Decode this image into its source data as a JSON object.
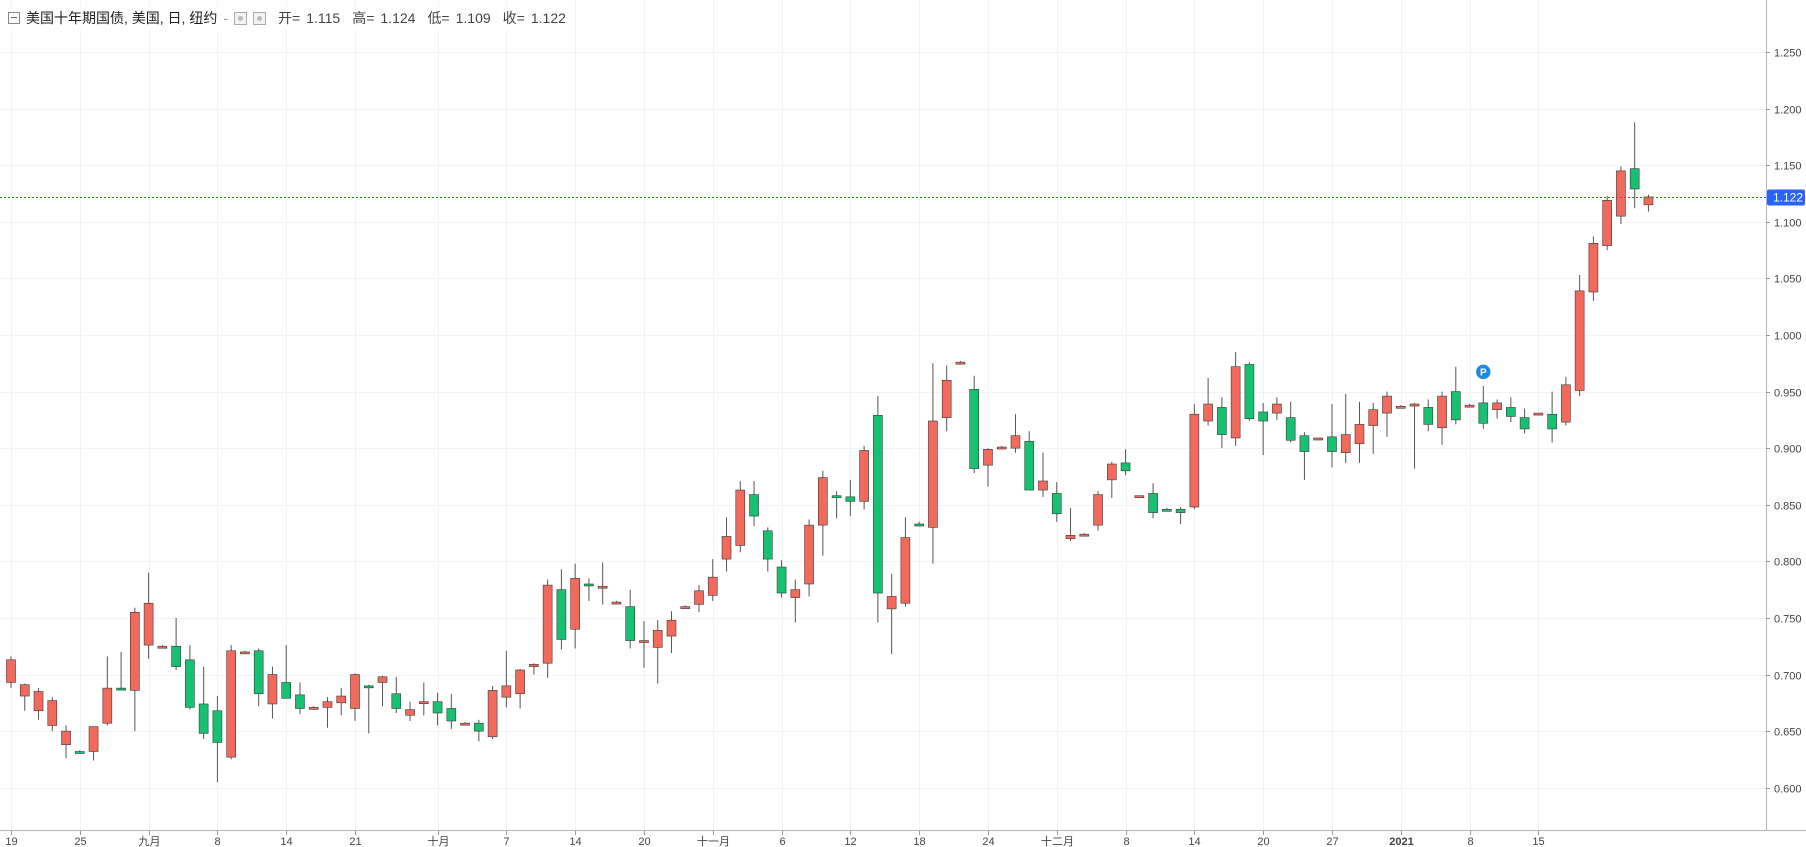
{
  "legend": {
    "symbol": "美国十年期国债, 美国, 日, 纽约",
    "dash": "-",
    "open_label": "开=",
    "open": "1.115",
    "high_label": "高=",
    "high": "1.124",
    "low_label": "低=",
    "low": "1.109",
    "close_label": "收=",
    "close": "1.122"
  },
  "colors": {
    "up": "#f16a5c",
    "down": "#18c171",
    "wick": "#555555",
    "price_tag": "#2962ff",
    "marker": "#1e88e5"
  },
  "chart_data": {
    "type": "candlestick",
    "y_ticks": [
      "0.600",
      "0.650",
      "0.700",
      "0.750",
      "0.800",
      "0.850",
      "0.900",
      "0.950",
      "1.000",
      "1.050",
      "1.100",
      "1.150",
      "1.200",
      "1.250"
    ],
    "ylim": [
      0.575,
      1.258
    ],
    "x_ticks": [
      {
        "i": 0,
        "label": "19"
      },
      {
        "i": 5,
        "label": "25"
      },
      {
        "i": 10,
        "label": "九月"
      },
      {
        "i": 15,
        "label": "8"
      },
      {
        "i": 20,
        "label": "14"
      },
      {
        "i": 25,
        "label": "21"
      },
      {
        "i": 31,
        "label": "十月"
      },
      {
        "i": 36,
        "label": "7"
      },
      {
        "i": 41,
        "label": "14"
      },
      {
        "i": 46,
        "label": "20"
      },
      {
        "i": 51,
        "label": "十一月"
      },
      {
        "i": 56,
        "label": "6"
      },
      {
        "i": 61,
        "label": "12"
      },
      {
        "i": 66,
        "label": "18"
      },
      {
        "i": 71,
        "label": "24"
      },
      {
        "i": 76,
        "label": "十二月"
      },
      {
        "i": 81,
        "label": "8"
      },
      {
        "i": 86,
        "label": "14"
      },
      {
        "i": 91,
        "label": "20"
      },
      {
        "i": 96,
        "label": "27"
      },
      {
        "i": 101,
        "label": "2021"
      },
      {
        "i": 106,
        "label": "8"
      },
      {
        "i": 111,
        "label": "15"
      }
    ],
    "current_price": 1.122,
    "current_price_label": "1.122",
    "marker_label": "P",
    "marker_index": 107,
    "candles": [
      [
        0.693,
        0.716,
        0.688,
        0.713
      ],
      [
        0.681,
        0.692,
        0.668,
        0.691
      ],
      [
        0.668,
        0.688,
        0.66,
        0.685
      ],
      [
        0.655,
        0.68,
        0.65,
        0.677
      ],
      [
        0.638,
        0.655,
        0.626,
        0.65
      ],
      [
        0.632,
        0.633,
        0.63,
        0.631
      ],
      [
        0.632,
        0.65,
        0.624,
        0.654
      ],
      [
        0.657,
        0.716,
        0.655,
        0.688
      ],
      [
        0.688,
        0.72,
        0.686,
        0.687
      ],
      [
        0.686,
        0.759,
        0.65,
        0.755
      ],
      [
        0.726,
        0.79,
        0.714,
        0.763
      ],
      [
        0.725,
        0.726,
        0.724,
        0.725
      ],
      [
        0.725,
        0.75,
        0.704,
        0.707
      ],
      [
        0.713,
        0.726,
        0.669,
        0.671
      ],
      [
        0.674,
        0.707,
        0.643,
        0.648
      ],
      [
        0.668,
        0.681,
        0.605,
        0.64
      ],
      [
        0.627,
        0.726,
        0.625,
        0.721
      ],
      [
        0.72,
        0.721,
        0.719,
        0.72
      ],
      [
        0.721,
        0.723,
        0.672,
        0.683
      ],
      [
        0.674,
        0.707,
        0.661,
        0.7
      ],
      [
        0.693,
        0.726,
        0.68,
        0.679
      ],
      [
        0.682,
        0.693,
        0.665,
        0.67
      ],
      [
        0.67,
        0.672,
        0.669,
        0.671
      ],
      [
        0.671,
        0.68,
        0.653,
        0.676
      ],
      [
        0.675,
        0.688,
        0.664,
        0.681
      ],
      [
        0.67,
        0.701,
        0.659,
        0.7
      ],
      [
        0.69,
        0.691,
        0.648,
        0.689
      ],
      [
        0.693,
        0.699,
        0.672,
        0.698
      ],
      [
        0.683,
        0.698,
        0.666,
        0.67
      ],
      [
        0.664,
        0.676,
        0.659,
        0.669
      ],
      [
        0.675,
        0.693,
        0.664,
        0.676
      ],
      [
        0.676,
        0.684,
        0.655,
        0.666
      ],
      [
        0.67,
        0.683,
        0.652,
        0.659
      ],
      [
        0.657,
        0.658,
        0.656,
        0.657
      ],
      [
        0.657,
        0.66,
        0.641,
        0.65
      ],
      [
        0.645,
        0.69,
        0.643,
        0.686
      ],
      [
        0.68,
        0.721,
        0.671,
        0.69
      ],
      [
        0.683,
        0.705,
        0.67,
        0.704
      ],
      [
        0.707,
        0.71,
        0.7,
        0.709
      ],
      [
        0.71,
        0.784,
        0.697,
        0.779
      ],
      [
        0.775,
        0.793,
        0.722,
        0.731
      ],
      [
        0.74,
        0.798,
        0.723,
        0.785
      ],
      [
        0.78,
        0.785,
        0.765,
        0.779
      ],
      [
        0.778,
        0.799,
        0.762,
        0.778
      ],
      [
        0.764,
        0.765,
        0.763,
        0.764
      ],
      [
        0.76,
        0.775,
        0.723,
        0.73
      ],
      [
        0.729,
        0.747,
        0.706,
        0.73
      ],
      [
        0.724,
        0.748,
        0.692,
        0.739
      ],
      [
        0.734,
        0.756,
        0.719,
        0.748
      ],
      [
        0.76,
        0.761,
        0.759,
        0.76
      ],
      [
        0.762,
        0.779,
        0.755,
        0.774
      ],
      [
        0.77,
        0.802,
        0.765,
        0.786
      ],
      [
        0.802,
        0.839,
        0.791,
        0.822
      ],
      [
        0.814,
        0.871,
        0.808,
        0.863
      ],
      [
        0.859,
        0.871,
        0.831,
        0.84
      ],
      [
        0.827,
        0.83,
        0.791,
        0.802
      ],
      [
        0.795,
        0.801,
        0.768,
        0.772
      ],
      [
        0.768,
        0.784,
        0.746,
        0.775
      ],
      [
        0.78,
        0.837,
        0.769,
        0.832
      ],
      [
        0.832,
        0.88,
        0.805,
        0.874
      ],
      [
        0.858,
        0.862,
        0.838,
        0.857
      ],
      [
        0.857,
        0.872,
        0.84,
        0.853
      ],
      [
        0.853,
        0.902,
        0.846,
        0.898
      ],
      [
        0.929,
        0.946,
        0.746,
        0.772
      ],
      [
        0.758,
        0.789,
        0.718,
        0.769
      ],
      [
        0.763,
        0.839,
        0.76,
        0.821
      ],
      [
        0.833,
        0.835,
        0.831,
        0.832
      ],
      [
        0.83,
        0.975,
        0.798,
        0.924
      ],
      [
        0.927,
        0.973,
        0.915,
        0.96
      ],
      [
        0.976,
        0.977,
        0.975,
        0.976
      ],
      [
        0.952,
        0.964,
        0.878,
        0.882
      ],
      [
        0.885,
        0.9,
        0.866,
        0.899
      ],
      [
        0.901,
        0.902,
        0.9,
        0.901
      ],
      [
        0.9,
        0.93,
        0.896,
        0.911
      ],
      [
        0.906,
        0.915,
        0.866,
        0.863
      ],
      [
        0.863,
        0.896,
        0.857,
        0.871
      ],
      [
        0.86,
        0.87,
        0.835,
        0.842
      ],
      [
        0.82,
        0.847,
        0.818,
        0.823
      ],
      [
        0.824,
        0.825,
        0.823,
        0.824
      ],
      [
        0.832,
        0.862,
        0.827,
        0.859
      ],
      [
        0.872,
        0.888,
        0.856,
        0.886
      ],
      [
        0.887,
        0.899,
        0.876,
        0.88
      ],
      [
        0.857,
        0.858,
        0.856,
        0.858
      ],
      [
        0.86,
        0.869,
        0.838,
        0.843
      ],
      [
        0.846,
        0.847,
        0.844,
        0.845
      ],
      [
        0.846,
        0.848,
        0.833,
        0.843
      ],
      [
        0.848,
        0.939,
        0.846,
        0.93
      ],
      [
        0.924,
        0.962,
        0.92,
        0.939
      ],
      [
        0.936,
        0.945,
        0.9,
        0.912
      ],
      [
        0.909,
        0.985,
        0.902,
        0.972
      ],
      [
        0.974,
        0.976,
        0.924,
        0.926
      ],
      [
        0.932,
        0.94,
        0.894,
        0.924
      ],
      [
        0.931,
        0.945,
        0.925,
        0.939
      ],
      [
        0.927,
        0.941,
        0.905,
        0.907
      ],
      [
        0.911,
        0.914,
        0.872,
        0.897
      ],
      [
        0.908,
        0.909,
        0.907,
        0.909
      ],
      [
        0.91,
        0.939,
        0.883,
        0.897
      ],
      [
        0.896,
        0.948,
        0.887,
        0.912
      ],
      [
        0.904,
        0.941,
        0.887,
        0.921
      ],
      [
        0.92,
        0.94,
        0.895,
        0.934
      ],
      [
        0.931,
        0.95,
        0.91,
        0.946
      ],
      [
        0.937,
        0.938,
        0.936,
        0.937
      ],
      [
        0.938,
        0.94,
        0.882,
        0.939
      ],
      [
        0.936,
        0.943,
        0.915,
        0.921
      ],
      [
        0.918,
        0.95,
        0.903,
        0.946
      ],
      [
        0.95,
        0.972,
        0.921,
        0.925
      ],
      [
        0.937,
        0.939,
        0.936,
        0.938
      ],
      [
        0.94,
        0.955,
        0.917,
        0.922
      ],
      [
        0.934,
        0.943,
        0.926,
        0.94
      ],
      [
        0.936,
        0.945,
        0.923,
        0.928
      ],
      [
        0.927,
        0.935,
        0.913,
        0.917
      ],
      [
        0.93,
        0.931,
        0.929,
        0.931
      ],
      [
        0.93,
        0.95,
        0.905,
        0.917
      ],
      [
        0.923,
        0.963,
        0.92,
        0.956
      ],
      [
        0.951,
        1.053,
        0.946,
        1.039
      ],
      [
        1.038,
        1.087,
        1.03,
        1.081
      ],
      [
        1.079,
        1.123,
        1.075,
        1.119
      ],
      [
        1.105,
        1.149,
        1.098,
        1.145
      ],
      [
        1.147,
        1.188,
        1.112,
        1.129
      ],
      [
        1.115,
        1.124,
        1.109,
        1.122
      ]
    ]
  }
}
